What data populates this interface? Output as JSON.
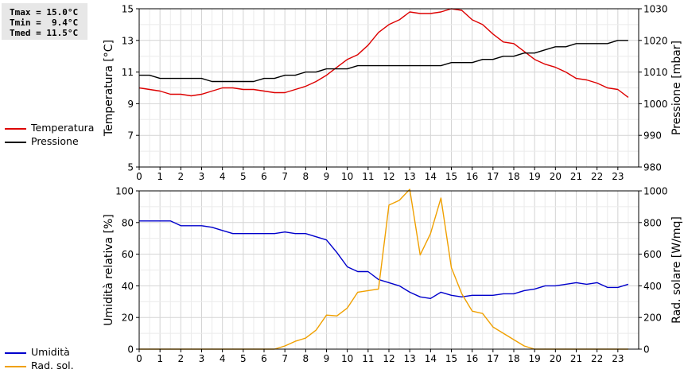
{
  "stats": {
    "tmax": "Tmax = 15.0°C",
    "tmin": "Tmin =  9.4°C",
    "tmed": "Tmed = 11.5°C"
  },
  "legend_top": [
    {
      "label": "Temperatura",
      "color": "#dd0000"
    },
    {
      "label": "Pressione",
      "color": "#000000"
    }
  ],
  "legend_bottom": [
    {
      "label": "Umidità",
      "color": "#0000cc"
    },
    {
      "label": "Rad. sol.",
      "color": "#f0a000"
    }
  ],
  "chart_data": [
    {
      "type": "line",
      "xlim": [
        0,
        24
      ],
      "x_ticks": [
        "0",
        "1",
        "2",
        "3",
        "4",
        "5",
        "6",
        "7",
        "8",
        "9",
        "10",
        "11",
        "12",
        "13",
        "14",
        "15",
        "16",
        "17",
        "18",
        "19",
        "20",
        "21",
        "22",
        "23"
      ],
      "ylabel": "Temperatura [°C]",
      "ylim": [
        5,
        15
      ],
      "y_ticks": [
        "5",
        "7",
        "9",
        "11",
        "13",
        "15"
      ],
      "ylabel_right": "Pressione [mbar]",
      "ylim_right": [
        980,
        1030
      ],
      "y_ticks_right": [
        "980",
        "990",
        "1000",
        "1010",
        "1020",
        "1030"
      ],
      "grid": true,
      "series": [
        {
          "name": "Temperatura",
          "axis": "left",
          "color": "#dd0000",
          "x": [
            0,
            0.5,
            1,
            1.5,
            2,
            2.5,
            3,
            3.5,
            4,
            4.5,
            5,
            5.5,
            6,
            6.5,
            7,
            7.5,
            8,
            8.5,
            9,
            9.5,
            10,
            10.5,
            11,
            11.5,
            12,
            12.5,
            13,
            13.5,
            14,
            14.5,
            15,
            15.5,
            16,
            16.5,
            17,
            17.5,
            18,
            18.5,
            19,
            19.5,
            20,
            20.5,
            21,
            21.5,
            22,
            22.5,
            23,
            23.5
          ],
          "y": [
            10.0,
            9.9,
            9.8,
            9.6,
            9.6,
            9.5,
            9.6,
            9.8,
            10.0,
            10.0,
            9.9,
            9.9,
            9.8,
            9.7,
            9.7,
            9.9,
            10.1,
            10.4,
            10.8,
            11.3,
            11.8,
            12.1,
            12.7,
            13.5,
            14.0,
            14.3,
            14.8,
            14.7,
            14.7,
            14.8,
            15.0,
            14.9,
            14.3,
            14.0,
            13.4,
            12.9,
            12.8,
            12.3,
            11.8,
            11.5,
            11.3,
            11.0,
            10.6,
            10.5,
            10.3,
            10.0,
            9.9,
            9.4
          ]
        },
        {
          "name": "Pressione",
          "axis": "right",
          "color": "#000000",
          "x": [
            0,
            0.5,
            1,
            1.5,
            2,
            2.5,
            3,
            3.5,
            4,
            4.5,
            5,
            5.5,
            6,
            6.5,
            7,
            7.5,
            8,
            8.5,
            9,
            9.5,
            10,
            10.5,
            11,
            11.5,
            12,
            12.5,
            13,
            13.5,
            14,
            14.5,
            15,
            15.5,
            16,
            16.5,
            17,
            17.5,
            18,
            18.5,
            19,
            19.5,
            20,
            20.5,
            21,
            21.5,
            22,
            22.5,
            23,
            23.5
          ],
          "y": [
            1009,
            1009,
            1008,
            1008,
            1008,
            1008,
            1008,
            1007,
            1007,
            1007,
            1007,
            1007,
            1008,
            1008,
            1009,
            1009,
            1010,
            1010,
            1011,
            1011,
            1011,
            1012,
            1012,
            1012,
            1012,
            1012,
            1012,
            1012,
            1012,
            1012,
            1013,
            1013,
            1013,
            1014,
            1014,
            1015,
            1015,
            1016,
            1016,
            1017,
            1018,
            1018,
            1019,
            1019,
            1019,
            1019,
            1020,
            1020
          ]
        }
      ]
    },
    {
      "type": "line",
      "xlim": [
        0,
        24
      ],
      "x_ticks": [
        "0",
        "1",
        "2",
        "3",
        "4",
        "5",
        "6",
        "7",
        "8",
        "9",
        "10",
        "11",
        "12",
        "13",
        "14",
        "15",
        "16",
        "17",
        "18",
        "19",
        "20",
        "21",
        "22",
        "23"
      ],
      "ylabel": "Umidità relativa [%]",
      "ylim": [
        0,
        100
      ],
      "y_ticks": [
        "0",
        "20",
        "40",
        "60",
        "80",
        "100"
      ],
      "ylabel_right": "Rad. solare [W/mq]",
      "ylim_right": [
        0,
        1000
      ],
      "y_ticks_right": [
        "0",
        "200",
        "400",
        "600",
        "800",
        "1000"
      ],
      "grid": true,
      "series": [
        {
          "name": "Umidità",
          "axis": "left",
          "color": "#0000cc",
          "x": [
            0,
            0.5,
            1,
            1.5,
            2,
            2.5,
            3,
            3.5,
            4,
            4.5,
            5,
            5.5,
            6,
            6.5,
            7,
            7.5,
            8,
            8.5,
            9,
            9.5,
            10,
            10.5,
            11,
            11.5,
            12,
            12.5,
            13,
            13.5,
            14,
            14.5,
            15,
            15.5,
            16,
            16.5,
            17,
            17.5,
            18,
            18.5,
            19,
            19.5,
            20,
            20.5,
            21,
            21.5,
            22,
            22.5,
            23,
            23.5
          ],
          "y": [
            81,
            81,
            81,
            81,
            78,
            78,
            78,
            77,
            75,
            73,
            73,
            73,
            73,
            73,
            74,
            73,
            73,
            71,
            69,
            61,
            52,
            49,
            49,
            44,
            42,
            40,
            36,
            33,
            32,
            36,
            34,
            33,
            34,
            34,
            34,
            35,
            35,
            37,
            38,
            40,
            40,
            41,
            42,
            41,
            42,
            39,
            39,
            41
          ]
        },
        {
          "name": "Rad. sol.",
          "axis": "right",
          "color": "#f0a000",
          "x": [
            0,
            0.5,
            1,
            1.5,
            2,
            2.5,
            3,
            3.5,
            4,
            4.5,
            5,
            5.5,
            6,
            6.5,
            7,
            7.5,
            8,
            8.5,
            9,
            9.5,
            10,
            10.5,
            11,
            11.5,
            12,
            12.5,
            13,
            13.5,
            14,
            14.5,
            15,
            15.5,
            16,
            16.5,
            17,
            17.5,
            18,
            18.5,
            19,
            19.5,
            20,
            20.5,
            21,
            21.5,
            22,
            22.5,
            23,
            23.5
          ],
          "y": [
            0,
            0,
            0,
            0,
            0,
            0,
            0,
            0,
            0,
            0,
            0,
            0,
            0,
            0,
            20,
            50,
            70,
            120,
            215,
            210,
            260,
            360,
            370,
            380,
            910,
            940,
            1010,
            595,
            730,
            955,
            515,
            350,
            240,
            225,
            140,
            100,
            60,
            20,
            0,
            0,
            0,
            0,
            0,
            0,
            0,
            0,
            0,
            0
          ]
        }
      ]
    }
  ]
}
